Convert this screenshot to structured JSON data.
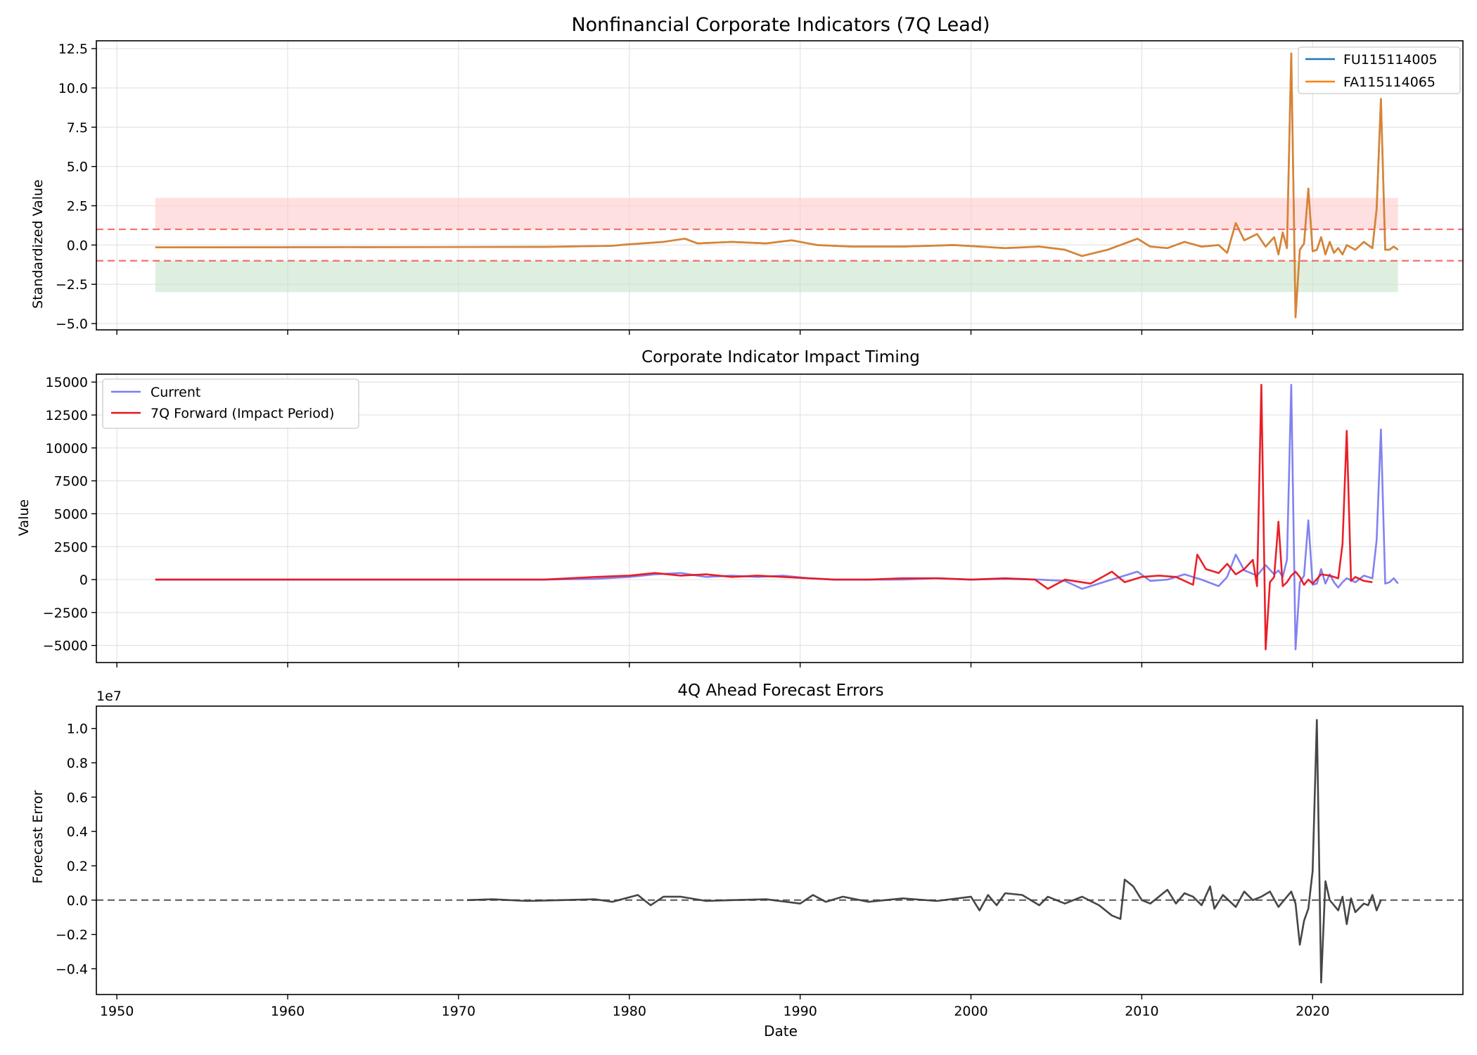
{
  "figure": {
    "xlabel": "Date",
    "xticks": [
      "1950",
      "1960",
      "1970",
      "1980",
      "1990",
      "2000",
      "2010",
      "2020"
    ]
  },
  "chart_data": [
    {
      "type": "line",
      "title": "Nonfinancial Corporate Indicators (7Q Lead)",
      "xlabel": "",
      "ylabel": "Standardized Value",
      "xlim": [
        1948.8,
        2028.8
      ],
      "ylim": [
        -5.4,
        13.0
      ],
      "yticks": [
        "12.5",
        "10.0",
        "7.5",
        "5.0",
        "2.5",
        "0.0",
        "−2.5",
        "−5.0"
      ],
      "grid": true,
      "legend_position": "top-right",
      "reference_lines": [
        1.0,
        -1.0
      ],
      "bands": [
        {
          "from": 1.0,
          "to": 3.0,
          "color": "#ffcccc",
          "x_range": [
            1952.25,
            2025.0
          ]
        },
        {
          "from": -1.0,
          "to": -3.0,
          "color": "#c9e4c9",
          "x_range": [
            1952.25,
            2025.0
          ]
        }
      ],
      "series": [
        {
          "name": "FU115114005",
          "color": "#1f77b4",
          "x": [
            1952.25,
            1975.0,
            1979.0,
            1980.0,
            1982.0,
            1983.25,
            1984.0,
            1986.0,
            1988.0,
            1989.5,
            1991.0,
            1993.0,
            1996.0,
            1999.0,
            2000.5,
            2002.0,
            2004.0,
            2005.5,
            2006.5,
            2008.0,
            2009.75,
            2010.5,
            2011.5,
            2012.5,
            2013.5,
            2014.5,
            2015.0,
            2015.5,
            2016.0,
            2016.75,
            2017.25,
            2017.75,
            2018.0,
            2018.25,
            2018.5,
            2018.75,
            2019.0,
            2019.25,
            2019.5,
            2019.75,
            2020.0,
            2020.25,
            2020.5,
            2020.75,
            2021.0,
            2021.25,
            2021.5,
            2021.75,
            2022.0,
            2022.5,
            2023.0,
            2023.5,
            2023.75,
            2024.0,
            2024.25,
            2024.5,
            2024.75,
            2025.0
          ],
          "y": [
            -0.15,
            -0.12,
            -0.05,
            0.05,
            0.2,
            0.4,
            0.1,
            0.2,
            0.1,
            0.3,
            0.0,
            -0.1,
            -0.1,
            0.0,
            -0.1,
            -0.2,
            -0.1,
            -0.3,
            -0.7,
            -0.3,
            0.4,
            -0.1,
            -0.2,
            0.2,
            -0.1,
            0.0,
            -0.5,
            1.4,
            0.3,
            0.7,
            -0.1,
            0.5,
            -0.6,
            0.8,
            -0.2,
            12.2,
            -4.6,
            -0.3,
            0.1,
            3.6,
            -0.4,
            -0.3,
            0.5,
            -0.6,
            0.2,
            -0.5,
            -0.2,
            -0.6,
            0.0,
            -0.3,
            0.2,
            -0.2,
            2.3,
            9.3,
            -0.3,
            -0.3,
            -0.1,
            -0.3
          ]
        },
        {
          "name": "FA115114065",
          "color": "#ff7f0e",
          "x": [
            1952.25,
            1975.0,
            1979.0,
            1980.0,
            1982.0,
            1983.25,
            1984.0,
            1986.0,
            1988.0,
            1989.5,
            1991.0,
            1993.0,
            1996.0,
            1999.0,
            2000.5,
            2002.0,
            2004.0,
            2005.5,
            2006.5,
            2008.0,
            2009.75,
            2010.5,
            2011.5,
            2012.5,
            2013.5,
            2014.5,
            2015.0,
            2015.5,
            2016.0,
            2016.75,
            2017.25,
            2017.75,
            2018.0,
            2018.25,
            2018.5,
            2018.75,
            2019.0,
            2019.25,
            2019.5,
            2019.75,
            2020.0,
            2020.25,
            2020.5,
            2020.75,
            2021.0,
            2021.25,
            2021.5,
            2021.75,
            2022.0,
            2022.5,
            2023.0,
            2023.5,
            2023.75,
            2024.0,
            2024.25,
            2024.5,
            2024.75,
            2025.0
          ],
          "y": [
            -0.15,
            -0.12,
            -0.05,
            0.05,
            0.2,
            0.4,
            0.1,
            0.2,
            0.1,
            0.3,
            0.0,
            -0.1,
            -0.1,
            0.0,
            -0.1,
            -0.2,
            -0.1,
            -0.3,
            -0.7,
            -0.3,
            0.4,
            -0.1,
            -0.2,
            0.2,
            -0.1,
            0.0,
            -0.5,
            1.4,
            0.3,
            0.7,
            -0.1,
            0.5,
            -0.6,
            0.8,
            -0.2,
            12.2,
            -4.6,
            -0.3,
            0.1,
            3.6,
            -0.4,
            -0.3,
            0.5,
            -0.6,
            0.2,
            -0.5,
            -0.2,
            -0.6,
            0.0,
            -0.3,
            0.2,
            -0.2,
            2.3,
            9.3,
            -0.3,
            -0.3,
            -0.1,
            -0.3
          ]
        }
      ]
    },
    {
      "type": "line",
      "title": "Corporate Indicator Impact Timing",
      "xlabel": "",
      "ylabel": "Value",
      "xlim": [
        1948.8,
        2028.8
      ],
      "ylim": [
        -6300,
        15600
      ],
      "yticks": [
        "15000",
        "12500",
        "10000",
        "7500",
        "5000",
        "2500",
        "0",
        "−2500",
        "−5000"
      ],
      "grid": true,
      "legend_position": "top-left",
      "series": [
        {
          "name": "Current",
          "color": "#7b7bf0",
          "x": [
            1952.25,
            1975.0,
            1978.0,
            1980.0,
            1981.5,
            1983.0,
            1984.5,
            1986.0,
            1987.5,
            1989.0,
            1990.5,
            1992.0,
            1994.0,
            1996.0,
            1998.0,
            2000.0,
            2002.0,
            2004.0,
            2005.5,
            2006.5,
            2008.0,
            2009.75,
            2010.5,
            2011.5,
            2012.5,
            2013.5,
            2014.5,
            2015.0,
            2015.5,
            2016.0,
            2016.75,
            2017.25,
            2017.75,
            2018.0,
            2018.25,
            2018.5,
            2018.75,
            2019.0,
            2019.25,
            2019.5,
            2019.75,
            2020.0,
            2020.25,
            2020.5,
            2020.75,
            2021.0,
            2021.25,
            2021.5,
            2021.75,
            2022.0,
            2022.5,
            2023.0,
            2023.5,
            2023.75,
            2024.0,
            2024.25,
            2024.5,
            2024.75,
            2025.0
          ],
          "y": [
            0,
            0,
            50,
            200,
            400,
            500,
            200,
            300,
            200,
            300,
            100,
            0,
            0,
            0,
            100,
            0,
            50,
            0,
            -100,
            -700,
            -100,
            600,
            -100,
            0,
            400,
            0,
            -500,
            200,
            1900,
            700,
            300,
            1100,
            400,
            700,
            200,
            1500,
            14800,
            -5300,
            -200,
            300,
            4500,
            -400,
            -300,
            800,
            -300,
            400,
            -200,
            -600,
            -200,
            100,
            -200,
            300,
            100,
            3000,
            11400,
            -300,
            -200,
            100,
            -300
          ]
        },
        {
          "name": "7Q Forward (Impact Period)",
          "color": "#e8141c",
          "x": [
            1952.25,
            1975.0,
            1978.0,
            1980.0,
            1981.5,
            1983.0,
            1984.5,
            1986.0,
            1987.5,
            1989.0,
            1990.5,
            1992.0,
            1994.0,
            1996.0,
            1998.0,
            2000.0,
            2002.0,
            2003.75,
            2004.5,
            2005.5,
            2007.0,
            2008.25,
            2009.0,
            2010.0,
            2011.0,
            2012.0,
            2013.0,
            2013.25,
            2013.75,
            2014.5,
            2015.0,
            2015.5,
            2016.0,
            2016.5,
            2016.75,
            2017.0,
            2017.25,
            2017.5,
            2017.75,
            2018.0,
            2018.25,
            2018.5,
            2018.75,
            2019.0,
            2019.25,
            2019.5,
            2019.75,
            2020.0,
            2020.5,
            2021.0,
            2021.5,
            2021.75,
            2022.0,
            2022.25,
            2022.5,
            2023.0,
            2023.5
          ],
          "y": [
            0,
            0,
            200,
            300,
            500,
            300,
            400,
            200,
            300,
            200,
            100,
            0,
            0,
            100,
            100,
            0,
            100,
            0,
            -700,
            0,
            -300,
            600,
            -200,
            200,
            300,
            200,
            -400,
            1900,
            800,
            500,
            1200,
            400,
            800,
            1500,
            -500,
            14800,
            -5300,
            -200,
            200,
            4400,
            -500,
            -200,
            300,
            600,
            200,
            -400,
            0,
            -300,
            400,
            300,
            100,
            2700,
            11300,
            -100,
            200,
            -100,
            -200
          ]
        }
      ]
    },
    {
      "type": "line",
      "title": "4Q Ahead Forecast Errors",
      "xlabel": "Date",
      "ylabel": "Forecast Error",
      "y_scale_label": "1e7",
      "xlim": [
        1948.8,
        2028.8
      ],
      "ylim": [
        -0.55,
        1.13
      ],
      "yticks": [
        "1.0",
        "0.8",
        "0.6",
        "0.4",
        "0.2",
        "0.0",
        "−0.2",
        "−0.4"
      ],
      "grid": false,
      "reference_lines": [
        0.0
      ],
      "series": [
        {
          "name": "",
          "color": "#3c3c3c",
          "x": [
            1970.5,
            1972.0,
            1974.0,
            1976.0,
            1978.0,
            1979.0,
            1980.5,
            1981.25,
            1982.0,
            1983.0,
            1984.5,
            1986.0,
            1988.0,
            1990.0,
            1990.75,
            1991.5,
            1992.5,
            1994.0,
            1996.0,
            1998.0,
            2000.0,
            2000.5,
            2001.0,
            2001.5,
            2002.0,
            2003.0,
            2004.0,
            2004.5,
            2005.5,
            2006.5,
            2007.5,
            2008.25,
            2008.75,
            2009.0,
            2009.5,
            2010.0,
            2010.5,
            2011.0,
            2011.5,
            2012.0,
            2012.5,
            2013.0,
            2013.5,
            2014.0,
            2014.25,
            2014.75,
            2015.5,
            2016.0,
            2016.5,
            2017.0,
            2017.5,
            2018.0,
            2018.5,
            2018.75,
            2019.0,
            2019.25,
            2019.5,
            2019.75,
            2020.0,
            2020.25,
            2020.5,
            2020.75,
            2021.0,
            2021.5,
            2021.75,
            2022.0,
            2022.25,
            2022.5,
            2023.0,
            2023.25,
            2023.5,
            2023.75,
            2024.0
          ],
          "y": [
            0.0,
            0.005,
            -0.005,
            0.0,
            0.005,
            -0.01,
            0.03,
            -0.03,
            0.02,
            0.02,
            -0.005,
            0.0,
            0.005,
            -0.02,
            0.03,
            -0.01,
            0.02,
            -0.01,
            0.01,
            -0.005,
            0.02,
            -0.06,
            0.03,
            -0.03,
            0.04,
            0.03,
            -0.03,
            0.02,
            -0.02,
            0.02,
            -0.03,
            -0.09,
            -0.11,
            0.12,
            0.08,
            0.0,
            -0.02,
            0.02,
            0.06,
            -0.02,
            0.04,
            0.02,
            -0.03,
            0.08,
            -0.05,
            0.03,
            -0.04,
            0.05,
            0.0,
            0.02,
            0.05,
            -0.04,
            0.02,
            0.05,
            -0.02,
            -0.26,
            -0.12,
            -0.05,
            0.17,
            1.05,
            -0.48,
            0.11,
            0.0,
            -0.06,
            0.02,
            -0.14,
            0.01,
            -0.07,
            -0.02,
            -0.03,
            0.03,
            -0.06,
            0.0
          ]
        }
      ]
    }
  ]
}
